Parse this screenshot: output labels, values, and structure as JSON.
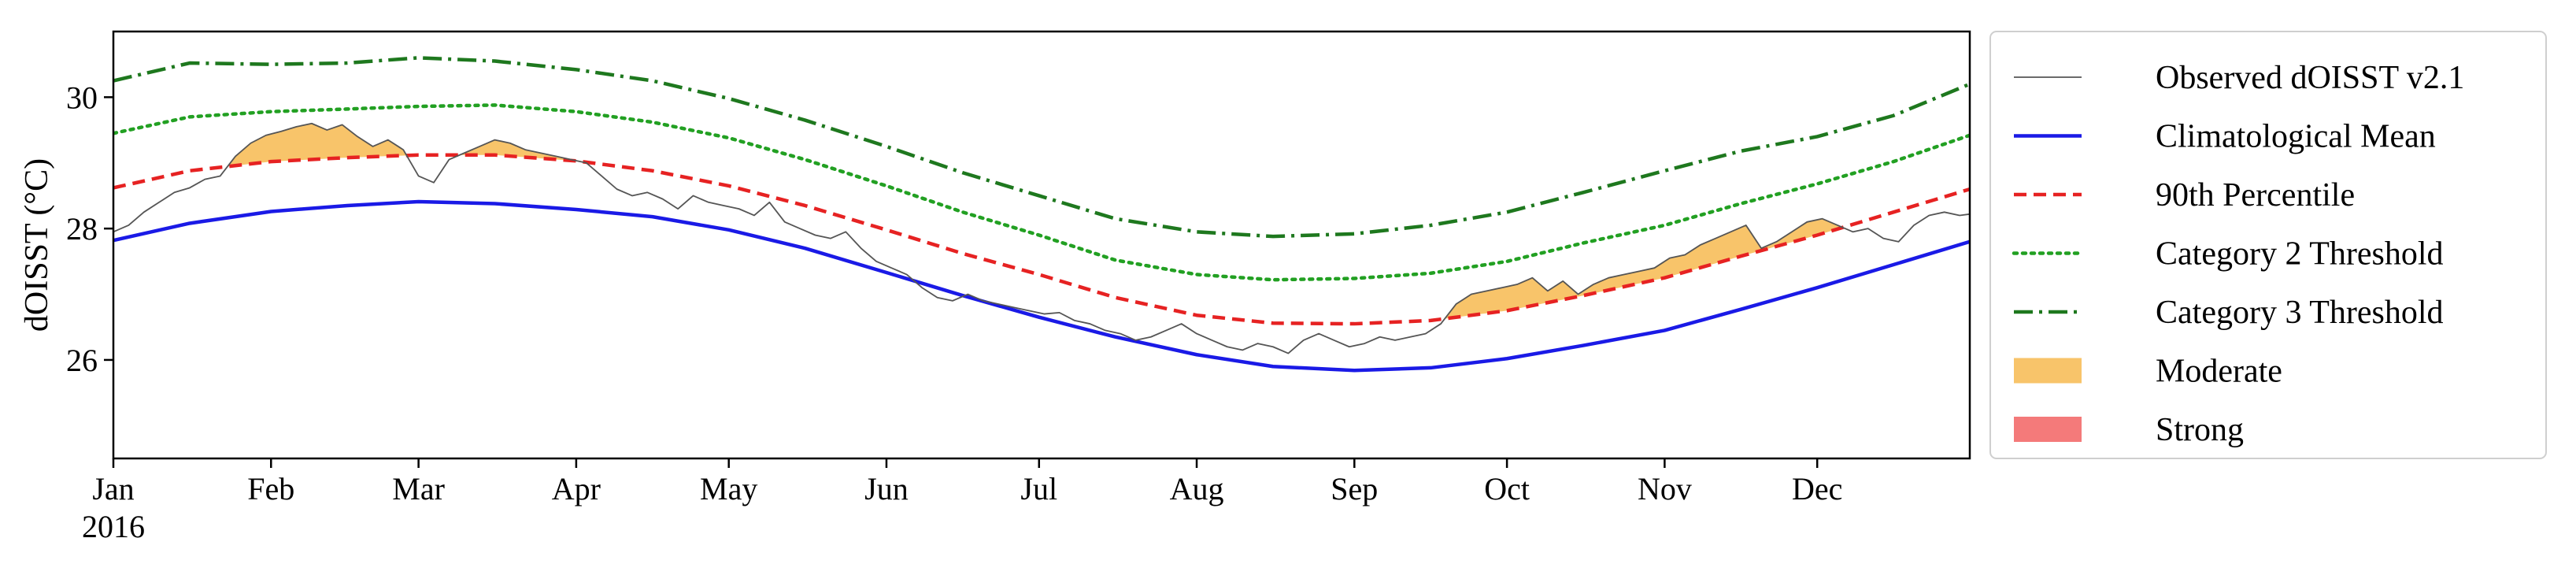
{
  "chart_data": {
    "type": "line",
    "title": "",
    "xlabel": "",
    "ylabel": "dOISST (°C)",
    "year_label": "2016",
    "xlim": [
      0,
      365
    ],
    "ylim": [
      24.5,
      31.0
    ],
    "yticks": [
      26,
      28,
      30
    ],
    "ytick_labels": [
      "26",
      "28",
      "30"
    ],
    "month_ticks": [
      0,
      31,
      60,
      91,
      121,
      152,
      182,
      213,
      244,
      274,
      305,
      335
    ],
    "month_labels": [
      "Jan",
      "Feb",
      "Mar",
      "Apr",
      "May",
      "Jun",
      "Jul",
      "Aug",
      "Sep",
      "Oct",
      "Nov",
      "Dec"
    ],
    "grid": false,
    "legend_position": "outside-right",
    "colors": {
      "observed": "#555555",
      "mean": "#1a1ae6",
      "p90": "#e62222",
      "cat2": "#22a022",
      "cat3": "#1e781e",
      "moderate": "#f8c46a",
      "strong": "#f47a7a"
    },
    "legend": [
      {
        "key": "observed",
        "label": "Observed dOISST v2.1",
        "style": "thin"
      },
      {
        "key": "mean",
        "label": "Climatological Mean",
        "style": "solid"
      },
      {
        "key": "p90",
        "label": "90th Percentile",
        "style": "dashed"
      },
      {
        "key": "cat2",
        "label": "Category 2 Threshold",
        "style": "dotted"
      },
      {
        "key": "cat3",
        "label": "Category 3 Threshold",
        "style": "dashdot"
      },
      {
        "key": "moderate",
        "label": "Moderate",
        "style": "patch"
      },
      {
        "key": "strong",
        "label": "Strong",
        "style": "patch"
      }
    ],
    "series": [
      {
        "name": "Climatological Mean",
        "key": "mean",
        "x": [
          0,
          15,
          31,
          46,
          60,
          75,
          91,
          106,
          121,
          136,
          152,
          167,
          182,
          197,
          213,
          228,
          244,
          259,
          274,
          289,
          305,
          320,
          335,
          350,
          365
        ],
        "y": [
          27.82,
          28.08,
          28.26,
          28.35,
          28.41,
          28.38,
          28.29,
          28.18,
          27.98,
          27.7,
          27.33,
          26.98,
          26.65,
          26.35,
          26.08,
          25.9,
          25.84,
          25.88,
          26.02,
          26.22,
          26.45,
          26.77,
          27.1,
          27.45,
          27.8
        ]
      },
      {
        "name": "90th Percentile",
        "key": "p90",
        "x": [
          0,
          15,
          31,
          46,
          60,
          75,
          91,
          106,
          121,
          136,
          152,
          167,
          182,
          197,
          213,
          228,
          244,
          259,
          274,
          289,
          305,
          320,
          335,
          350,
          365
        ],
        "y": [
          28.62,
          28.88,
          29.02,
          29.08,
          29.12,
          29.12,
          29.03,
          28.88,
          28.65,
          28.35,
          27.98,
          27.62,
          27.3,
          26.95,
          26.68,
          26.56,
          26.55,
          26.6,
          26.75,
          26.98,
          27.25,
          27.58,
          27.9,
          28.25,
          28.6
        ]
      },
      {
        "name": "Category 2 Threshold",
        "key": "cat2",
        "x": [
          0,
          15,
          31,
          46,
          60,
          75,
          91,
          106,
          121,
          136,
          152,
          167,
          182,
          197,
          213,
          228,
          244,
          259,
          274,
          289,
          305,
          320,
          335,
          350,
          365
        ],
        "y": [
          29.45,
          29.7,
          29.78,
          29.82,
          29.86,
          29.88,
          29.78,
          29.62,
          29.38,
          29.05,
          28.65,
          28.25,
          27.9,
          27.52,
          27.3,
          27.22,
          27.24,
          27.32,
          27.5,
          27.78,
          28.05,
          28.38,
          28.68,
          29.02,
          29.42
        ]
      },
      {
        "name": "Category 3 Threshold",
        "key": "cat3",
        "x": [
          0,
          15,
          31,
          46,
          60,
          75,
          91,
          106,
          121,
          136,
          152,
          167,
          182,
          197,
          213,
          228,
          244,
          259,
          274,
          289,
          305,
          320,
          335,
          350,
          365
        ],
        "y": [
          30.25,
          30.52,
          30.5,
          30.52,
          30.6,
          30.55,
          30.42,
          30.25,
          29.98,
          29.65,
          29.25,
          28.85,
          28.5,
          28.15,
          27.95,
          27.88,
          27.92,
          28.05,
          28.25,
          28.55,
          28.88,
          29.18,
          29.4,
          29.72,
          30.2
        ]
      },
      {
        "name": "Observed dOISST v2.1",
        "key": "observed",
        "x": [
          0,
          3,
          6,
          9,
          12,
          15,
          18,
          21,
          24,
          27,
          30,
          33,
          36,
          39,
          42,
          45,
          48,
          51,
          54,
          57,
          60,
          63,
          66,
          69,
          72,
          75,
          78,
          81,
          84,
          87,
          90,
          93,
          96,
          99,
          102,
          105,
          108,
          111,
          114,
          117,
          120,
          123,
          126,
          129,
          132,
          135,
          138,
          141,
          144,
          147,
          150,
          153,
          156,
          159,
          162,
          165,
          168,
          171,
          174,
          177,
          180,
          183,
          186,
          189,
          192,
          195,
          198,
          201,
          204,
          207,
          210,
          213,
          216,
          219,
          222,
          225,
          228,
          231,
          234,
          237,
          240,
          243,
          246,
          249,
          252,
          255,
          258,
          261,
          264,
          267,
          270,
          273,
          276,
          279,
          282,
          285,
          288,
          291,
          294,
          297,
          300,
          303,
          306,
          309,
          312,
          315,
          318,
          321,
          324,
          327,
          330,
          333,
          336,
          339,
          342,
          345,
          348,
          351,
          354,
          357,
          360,
          363,
          365
        ],
        "y": [
          27.95,
          28.05,
          28.25,
          28.4,
          28.55,
          28.62,
          28.75,
          28.8,
          29.1,
          29.3,
          29.42,
          29.48,
          29.55,
          29.6,
          29.5,
          29.58,
          29.4,
          29.25,
          29.35,
          29.2,
          28.8,
          28.7,
          29.05,
          29.15,
          29.25,
          29.35,
          29.3,
          29.2,
          29.15,
          29.1,
          29.05,
          29.0,
          28.8,
          28.6,
          28.5,
          28.55,
          28.45,
          28.3,
          28.5,
          28.4,
          28.35,
          28.3,
          28.2,
          28.4,
          28.1,
          28.0,
          27.9,
          27.85,
          27.95,
          27.7,
          27.5,
          27.4,
          27.3,
          27.1,
          26.95,
          26.9,
          27.0,
          26.9,
          26.85,
          26.8,
          26.75,
          26.7,
          26.72,
          26.6,
          26.55,
          26.45,
          26.4,
          26.3,
          26.35,
          26.45,
          26.55,
          26.4,
          26.3,
          26.2,
          26.15,
          26.25,
          26.2,
          26.1,
          26.3,
          26.4,
          26.3,
          26.2,
          26.25,
          26.35,
          26.3,
          26.35,
          26.4,
          26.55,
          26.85,
          27.0,
          27.05,
          27.1,
          27.15,
          27.25,
          27.05,
          27.2,
          27.0,
          27.15,
          27.25,
          27.3,
          27.35,
          27.4,
          27.55,
          27.6,
          27.75,
          27.85,
          27.95,
          28.05,
          27.7,
          27.8,
          27.95,
          28.1,
          28.15,
          28.05,
          27.95,
          28.0,
          27.85,
          27.8,
          28.05,
          28.2,
          28.25,
          28.2,
          28.22
        ]
      }
    ]
  }
}
